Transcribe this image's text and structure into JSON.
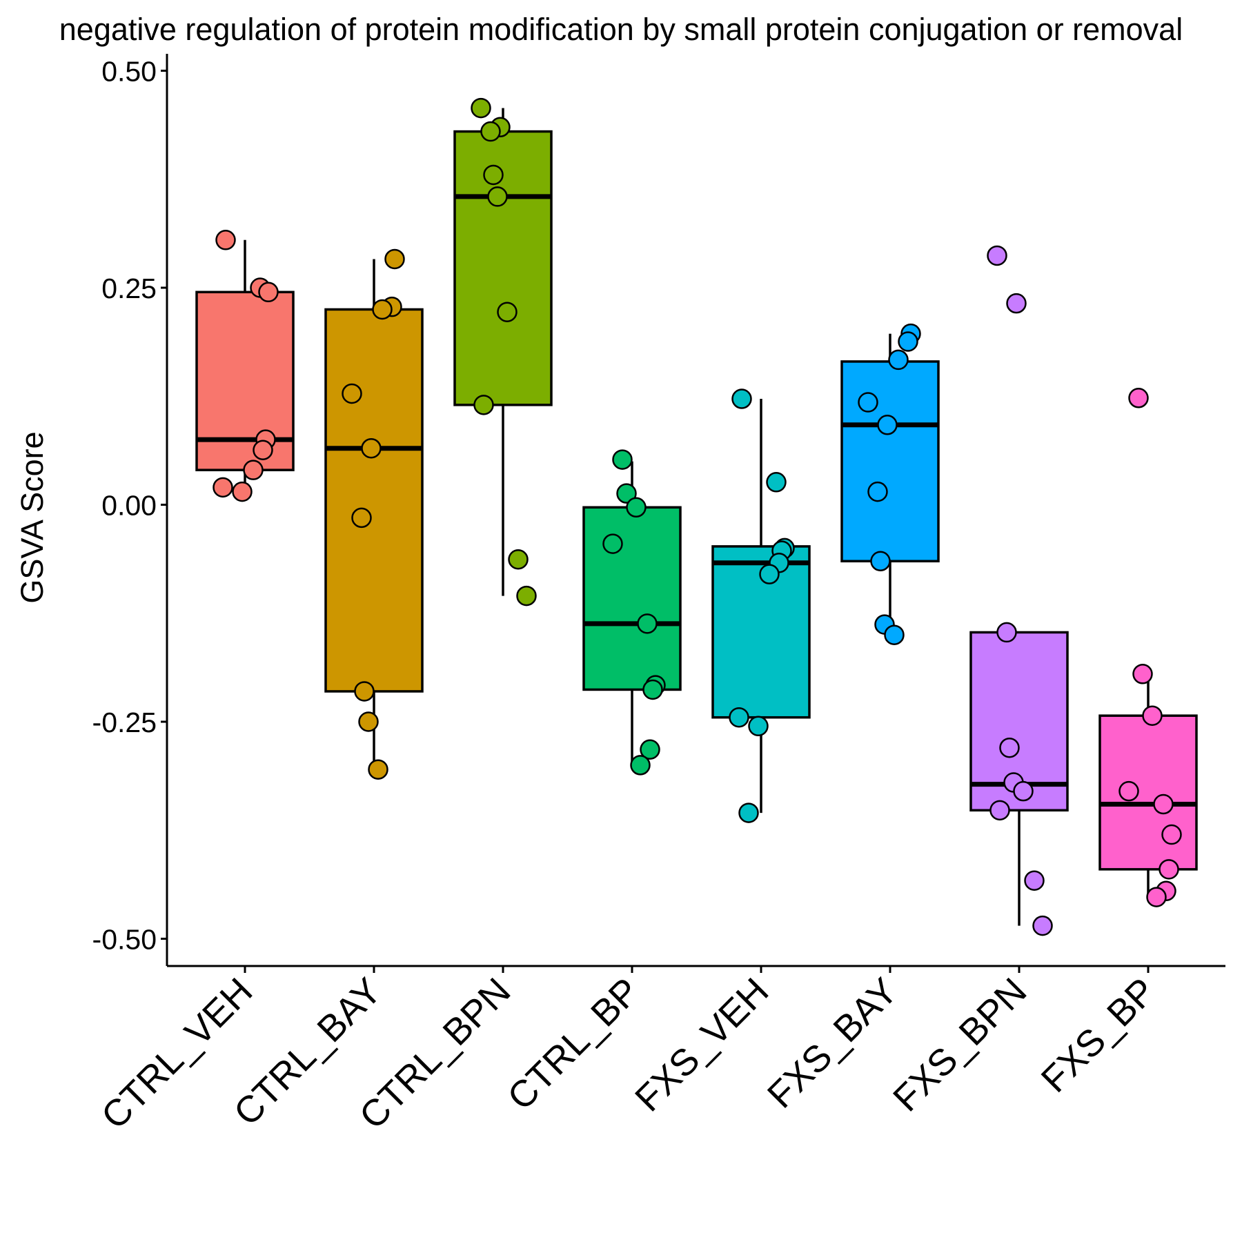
{
  "chart_data": {
    "type": "box",
    "title": "negative regulation of protein modification by small protein conjugation or removal",
    "xlabel": "",
    "ylabel": "GSVA Score",
    "ylim": [
      -0.53,
      0.52
    ],
    "yticks": [
      "0.50",
      "0.25",
      "0.00",
      "-0.25",
      "-0.50"
    ],
    "ytick_values": [
      0.5,
      0.25,
      0.0,
      -0.25,
      -0.5
    ],
    "grid": false,
    "legend": "none",
    "categories": [
      "CTRL_VEH",
      "CTRL_BAY",
      "CTRL_BPN",
      "CTRL_BP",
      "FXS_VEH",
      "FXS_BAY",
      "FXS_BPN",
      "FXS_BP"
    ],
    "colors": [
      "#F8766D",
      "#CD9600",
      "#7CAE00",
      "#00BE67",
      "#00BFC4",
      "#00A9FF",
      "#C77CFF",
      "#FF61CC"
    ],
    "series": [
      {
        "category": "CTRL_VEH",
        "box": {
          "lower_whisker": 0.015,
          "q1": 0.04,
          "median": 0.075,
          "q3": 0.245,
          "upper_whisker": 0.305
        },
        "points": [
          0.305,
          0.25,
          0.245,
          0.075,
          0.063,
          0.04,
          0.02,
          0.015
        ]
      },
      {
        "category": "CTRL_BAY",
        "box": {
          "lower_whisker": -0.305,
          "q1": -0.215,
          "median": 0.065,
          "q3": 0.225,
          "upper_whisker": 0.283
        },
        "points": [
          0.283,
          0.228,
          0.225,
          0.128,
          0.065,
          -0.015,
          -0.215,
          -0.25,
          -0.305
        ]
      },
      {
        "category": "CTRL_BPN",
        "box": {
          "lower_whisker": -0.105,
          "q1": 0.115,
          "median": 0.355,
          "q3": 0.43,
          "upper_whisker": 0.457
        },
        "points": [
          0.457,
          0.435,
          0.43,
          0.38,
          0.355,
          0.222,
          0.115,
          -0.063,
          -0.105
        ]
      },
      {
        "category": "CTRL_BP",
        "box": {
          "lower_whisker": -0.3,
          "q1": -0.213,
          "median": -0.137,
          "q3": -0.003,
          "upper_whisker": 0.05
        },
        "points": [
          0.052,
          0.013,
          -0.003,
          -0.045,
          -0.137,
          -0.208,
          -0.213,
          -0.282,
          -0.3
        ]
      },
      {
        "category": "FXS_VEH",
        "box": {
          "lower_whisker": -0.355,
          "q1": -0.245,
          "median": -0.067,
          "q3": -0.048,
          "upper_whisker": 0.122
        },
        "points": [
          0.122,
          0.026,
          -0.05,
          -0.053,
          -0.067,
          -0.08,
          -0.245,
          -0.255,
          -0.355
        ]
      },
      {
        "category": "FXS_BAY",
        "box": {
          "lower_whisker": -0.15,
          "q1": -0.065,
          "median": 0.092,
          "q3": 0.165,
          "upper_whisker": 0.197
        },
        "points": [
          0.197,
          0.188,
          0.167,
          0.118,
          0.092,
          0.015,
          -0.065,
          -0.138,
          -0.15
        ]
      },
      {
        "category": "FXS_BPN",
        "box": {
          "lower_whisker": -0.485,
          "q1": -0.352,
          "median": -0.322,
          "q3": -0.147,
          "upper_whisker": -0.147
        },
        "points": [
          0.287,
          0.232,
          -0.147,
          -0.28,
          -0.32,
          -0.33,
          -0.352,
          -0.433,
          -0.485
        ]
      },
      {
        "category": "FXS_BP",
        "box": {
          "lower_whisker": -0.452,
          "q1": -0.42,
          "median": -0.345,
          "q3": -0.243,
          "upper_whisker": -0.195
        },
        "points": [
          0.123,
          -0.195,
          -0.243,
          -0.33,
          -0.345,
          -0.38,
          -0.42,
          -0.445,
          -0.452
        ]
      }
    ]
  }
}
